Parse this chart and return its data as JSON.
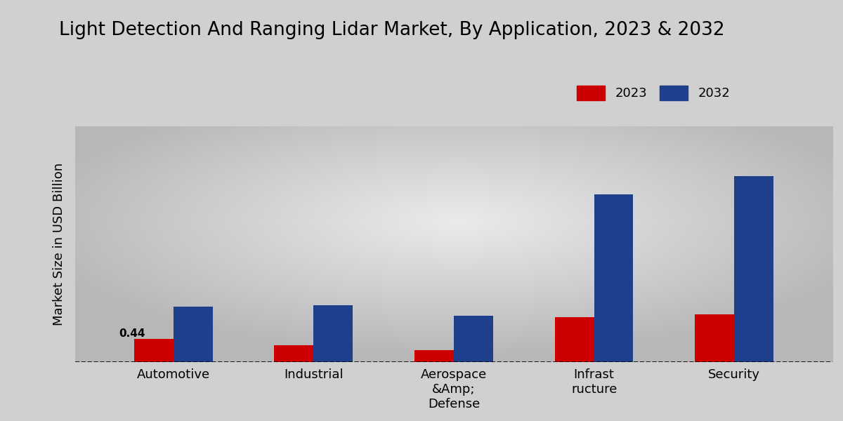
{
  "title": "Light Detection And Ranging Lidar Market, By Application, 2023 & 2032",
  "ylabel": "Market Size in USD Billion",
  "categories": [
    "Automotive",
    "Industrial",
    "Aerospace\n&Amp;\nDefense",
    "Infrast\nructure",
    "Security"
  ],
  "values_2023": [
    0.44,
    0.32,
    0.22,
    0.85,
    0.9
  ],
  "values_2032": [
    1.05,
    1.08,
    0.88,
    3.2,
    3.55
  ],
  "color_2023": "#cc0000",
  "color_2032": "#1e3f8c",
  "annotation_label": "0.44",
  "background_top": "#c8c8c8",
  "background_bottom": "#e8e8e8",
  "title_fontsize": 19,
  "legend_fontsize": 13,
  "axis_fontsize": 13,
  "ylim_max": 4.5,
  "bar_width": 0.28,
  "dashed_line_y": 0.0
}
